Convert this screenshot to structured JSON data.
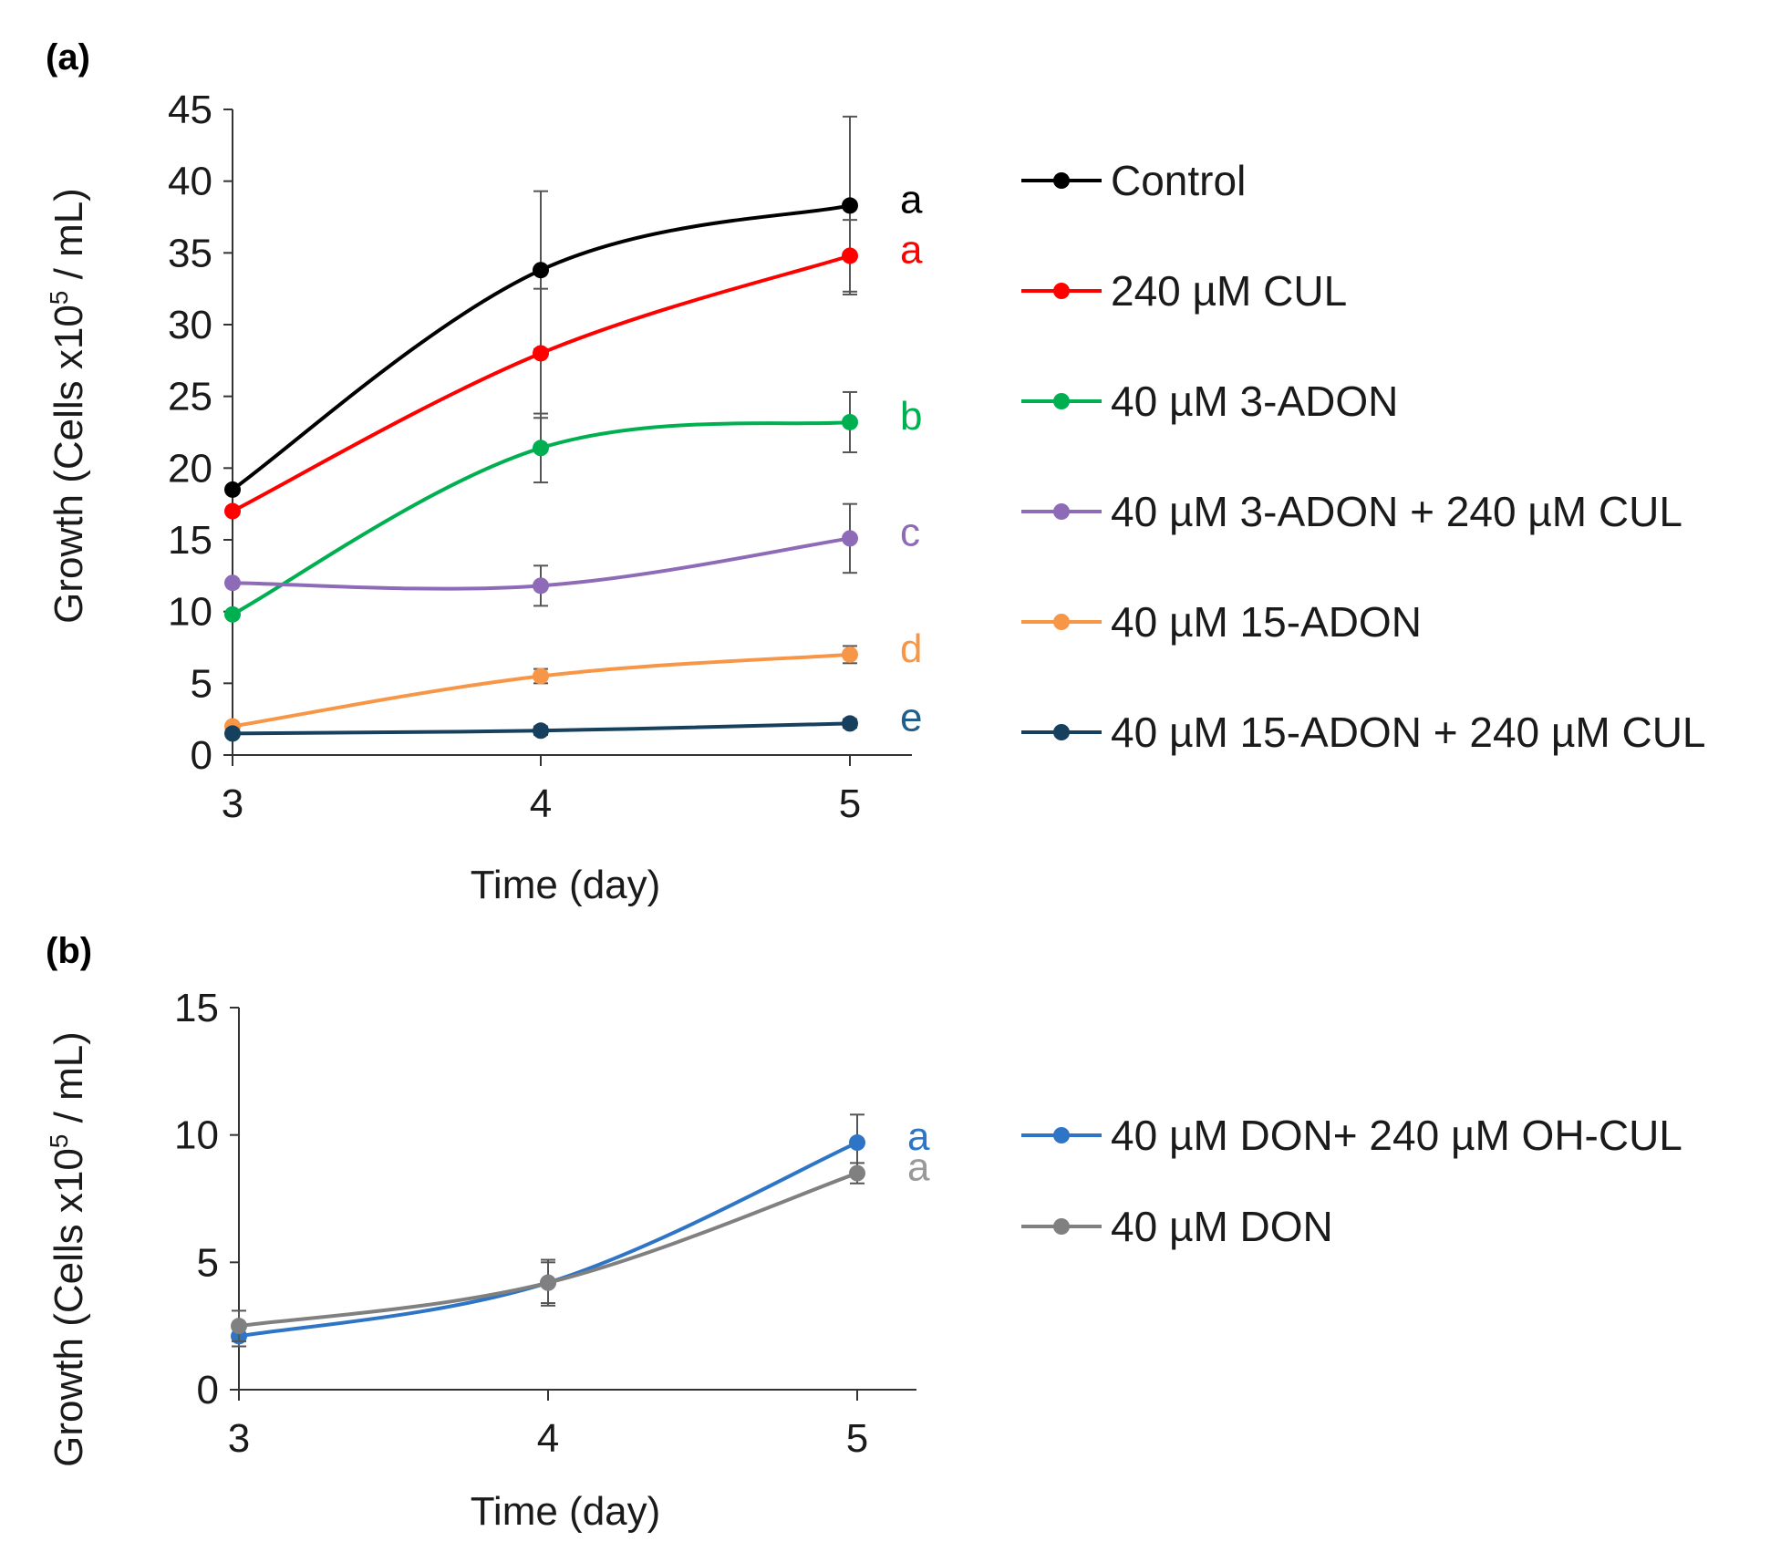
{
  "chart_data": [
    {
      "panel": "(a)",
      "type": "line",
      "xlabel": "Time (day)",
      "ylabel_main": "Growth (Cells x10",
      "ylabel_sup": "5",
      "ylabel_tail": " / mL)",
      "x": [
        3,
        4,
        5
      ],
      "xticks": [
        3,
        4,
        5
      ],
      "ylim": [
        0,
        45
      ],
      "yticks": [
        0,
        5,
        10,
        15,
        20,
        25,
        30,
        35,
        40,
        45
      ],
      "grid": false,
      "legend_position": "right",
      "series": [
        {
          "name": "Control",
          "color": "#000000",
          "values": [
            18.5,
            33.8,
            38.3
          ],
          "errors": [
            0,
            5.5,
            6.2
          ],
          "letter": "a",
          "letter_color": "#000000"
        },
        {
          "name": "240 µM CUL",
          "color": "#ff0000",
          "values": [
            17.0,
            28.0,
            34.8
          ],
          "errors": [
            0,
            4.5,
            2.5
          ],
          "letter": "a",
          "letter_color": "#ff0000"
        },
        {
          "name": "40 µM 3-ADON",
          "color": "#00b050",
          "values": [
            9.8,
            21.4,
            23.2
          ],
          "errors": [
            0,
            2.4,
            2.1
          ],
          "letter": "b",
          "letter_color": "#00b050"
        },
        {
          "name": "40 µM 3-ADON + 240 µM CUL",
          "color": "#8e6bb6",
          "values": [
            12.0,
            11.8,
            15.1
          ],
          "errors": [
            0,
            1.4,
            2.4
          ],
          "letter": "c",
          "letter_color": "#8e6bb6"
        },
        {
          "name": "40 µM 15-ADON",
          "color": "#f79646",
          "values": [
            2.0,
            5.5,
            7.0
          ],
          "errors": [
            0,
            0.5,
            0.6
          ],
          "letter": "d",
          "letter_color": "#f79646"
        },
        {
          "name": "40 µM 15-ADON + 240 µM CUL",
          "color": "#17405f",
          "values": [
            1.5,
            1.7,
            2.2
          ],
          "errors": [
            0,
            0.3,
            0.3
          ],
          "letter": "e",
          "letter_color": "#1f5f8a"
        }
      ]
    },
    {
      "panel": "(b)",
      "type": "line",
      "xlabel": "Time (day)",
      "ylabel_main": "Growth (Cells x10",
      "ylabel_sup": "5",
      "ylabel_tail": " / mL)",
      "x": [
        3,
        4,
        5
      ],
      "xticks": [
        3,
        4,
        5
      ],
      "ylim": [
        0,
        15
      ],
      "yticks": [
        0,
        5,
        10,
        15
      ],
      "grid": false,
      "legend_position": "right",
      "series": [
        {
          "name": "40 µM DON+ 240 µM OH-CUL",
          "color": "#2e75c6",
          "values": [
            2.1,
            4.2,
            9.7
          ],
          "errors": [
            0.4,
            0.9,
            1.1
          ],
          "letter": "a",
          "letter_color": "#2e75c6"
        },
        {
          "name": "40 µM DON",
          "color": "#808080",
          "values": [
            2.5,
            4.2,
            8.5
          ],
          "errors": [
            0.6,
            0.8,
            0.4
          ],
          "letter": "a",
          "letter_color": "#999999"
        }
      ]
    }
  ]
}
